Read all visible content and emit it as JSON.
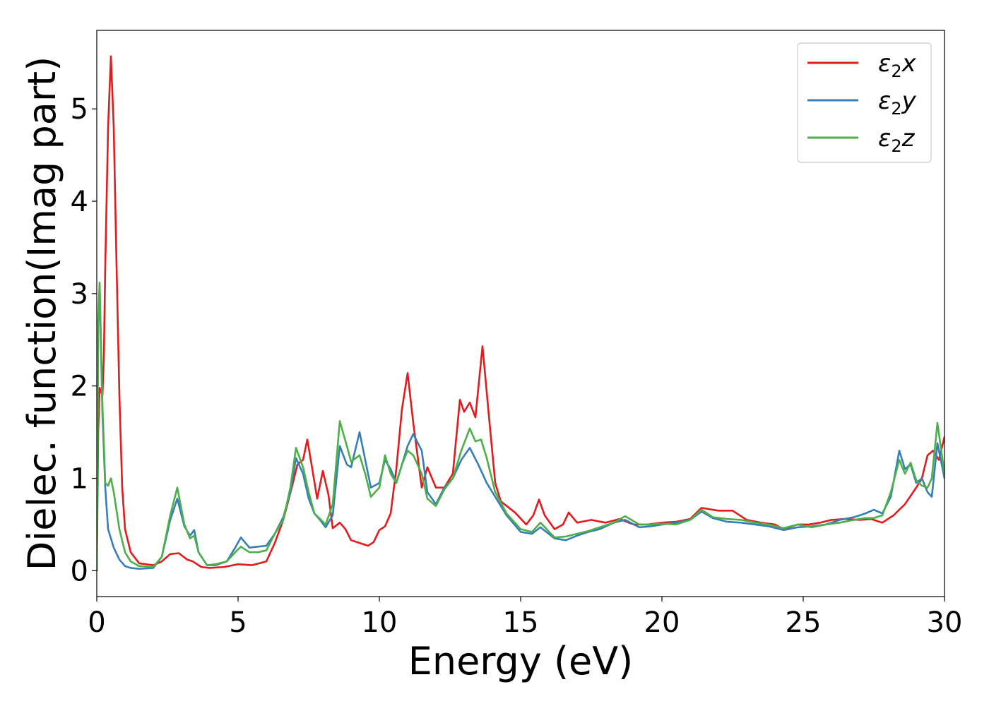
{
  "chart_data": {
    "type": "line",
    "title": "",
    "xlabel": "Energy (eV)",
    "ylabel": "Dielec. function(Imag part)",
    "xlim": [
      0,
      30
    ],
    "ylim": [
      -0.28,
      5.85
    ],
    "xticks": [
      0,
      5,
      10,
      15,
      20,
      25,
      30
    ],
    "yticks": [
      0,
      1,
      2,
      3,
      4,
      5
    ],
    "grid": false,
    "legend_position": "top-right",
    "series": [
      {
        "name": "ε2x",
        "label_base": "ε",
        "label_sub": "2",
        "label_suffix": "x",
        "color": "#e41a1c",
        "points": [
          [
            0,
            0.0
          ],
          [
            0.05,
            1.5
          ],
          [
            0.1,
            1.98
          ],
          [
            0.2,
            1.9
          ],
          [
            0.25,
            2.3
          ],
          [
            0.3,
            3.3
          ],
          [
            0.4,
            4.8
          ],
          [
            0.5,
            5.57
          ],
          [
            0.6,
            4.8
          ],
          [
            0.7,
            3.3
          ],
          [
            0.8,
            1.9
          ],
          [
            0.9,
            0.9
          ],
          [
            1.0,
            0.45
          ],
          [
            1.2,
            0.2
          ],
          [
            1.5,
            0.08
          ],
          [
            2.0,
            0.06
          ],
          [
            2.3,
            0.1
          ],
          [
            2.6,
            0.18
          ],
          [
            2.9,
            0.19
          ],
          [
            3.2,
            0.12
          ],
          [
            3.4,
            0.1
          ],
          [
            3.7,
            0.04
          ],
          [
            4.0,
            0.03
          ],
          [
            4.5,
            0.04
          ],
          [
            5.0,
            0.07
          ],
          [
            5.5,
            0.06
          ],
          [
            6.0,
            0.1
          ],
          [
            6.3,
            0.3
          ],
          [
            6.6,
            0.55
          ],
          [
            6.9,
            0.9
          ],
          [
            7.1,
            1.15
          ],
          [
            7.3,
            1.2
          ],
          [
            7.45,
            1.42
          ],
          [
            7.6,
            1.15
          ],
          [
            7.8,
            0.78
          ],
          [
            8.0,
            1.08
          ],
          [
            8.2,
            0.82
          ],
          [
            8.35,
            0.46
          ],
          [
            8.6,
            0.52
          ],
          [
            8.8,
            0.45
          ],
          [
            9.0,
            0.33
          ],
          [
            9.3,
            0.3
          ],
          [
            9.6,
            0.27
          ],
          [
            9.8,
            0.31
          ],
          [
            10.0,
            0.44
          ],
          [
            10.2,
            0.48
          ],
          [
            10.4,
            0.62
          ],
          [
            10.6,
            1.1
          ],
          [
            10.8,
            1.75
          ],
          [
            11.0,
            2.14
          ],
          [
            11.2,
            1.6
          ],
          [
            11.5,
            0.9
          ],
          [
            11.7,
            1.12
          ],
          [
            12.0,
            0.9
          ],
          [
            12.3,
            0.9
          ],
          [
            12.6,
            1.05
          ],
          [
            12.85,
            1.85
          ],
          [
            13.0,
            1.72
          ],
          [
            13.2,
            1.82
          ],
          [
            13.4,
            1.66
          ],
          [
            13.65,
            2.43
          ],
          [
            13.9,
            1.6
          ],
          [
            14.1,
            0.95
          ],
          [
            14.3,
            0.75
          ],
          [
            14.8,
            0.63
          ],
          [
            15.2,
            0.5
          ],
          [
            15.45,
            0.6
          ],
          [
            15.65,
            0.77
          ],
          [
            15.85,
            0.6
          ],
          [
            16.2,
            0.45
          ],
          [
            16.5,
            0.5
          ],
          [
            16.7,
            0.63
          ],
          [
            17.0,
            0.52
          ],
          [
            17.5,
            0.55
          ],
          [
            18.0,
            0.52
          ],
          [
            18.5,
            0.56
          ],
          [
            19.0,
            0.5
          ],
          [
            19.5,
            0.5
          ],
          [
            20.0,
            0.52
          ],
          [
            20.5,
            0.53
          ],
          [
            21.0,
            0.56
          ],
          [
            21.4,
            0.68
          ],
          [
            22.0,
            0.65
          ],
          [
            22.5,
            0.65
          ],
          [
            23.0,
            0.55
          ],
          [
            23.5,
            0.52
          ],
          [
            24.0,
            0.5
          ],
          [
            24.3,
            0.45
          ],
          [
            24.8,
            0.5
          ],
          [
            25.2,
            0.5
          ],
          [
            25.6,
            0.52
          ],
          [
            26.0,
            0.55
          ],
          [
            26.5,
            0.56
          ],
          [
            27.0,
            0.55
          ],
          [
            27.4,
            0.56
          ],
          [
            27.8,
            0.52
          ],
          [
            28.2,
            0.6
          ],
          [
            28.6,
            0.72
          ],
          [
            29.0,
            0.9
          ],
          [
            29.2,
            1.0
          ],
          [
            29.4,
            1.25
          ],
          [
            29.6,
            1.3
          ],
          [
            29.8,
            1.2
          ],
          [
            30.0,
            1.45
          ]
        ]
      },
      {
        "name": "ε2y",
        "label_base": "ε",
        "label_sub": "2",
        "label_suffix": "y",
        "color": "#377eb8",
        "points": [
          [
            0,
            0.0
          ],
          [
            0.05,
            2.6
          ],
          [
            0.1,
            3.1
          ],
          [
            0.2,
            1.7
          ],
          [
            0.3,
            0.9
          ],
          [
            0.4,
            0.45
          ],
          [
            0.6,
            0.25
          ],
          [
            0.8,
            0.12
          ],
          [
            1.0,
            0.05
          ],
          [
            1.2,
            0.03
          ],
          [
            1.5,
            0.02
          ],
          [
            2.0,
            0.03
          ],
          [
            2.3,
            0.15
          ],
          [
            2.6,
            0.55
          ],
          [
            2.85,
            0.78
          ],
          [
            3.1,
            0.48
          ],
          [
            3.3,
            0.38
          ],
          [
            3.45,
            0.44
          ],
          [
            3.6,
            0.2
          ],
          [
            3.9,
            0.06
          ],
          [
            4.2,
            0.06
          ],
          [
            4.6,
            0.1
          ],
          [
            4.9,
            0.25
          ],
          [
            5.1,
            0.36
          ],
          [
            5.4,
            0.25
          ],
          [
            5.7,
            0.26
          ],
          [
            6.0,
            0.27
          ],
          [
            6.3,
            0.4
          ],
          [
            6.6,
            0.58
          ],
          [
            6.85,
            0.85
          ],
          [
            7.05,
            1.22
          ],
          [
            7.3,
            1.05
          ],
          [
            7.5,
            0.78
          ],
          [
            7.7,
            0.62
          ],
          [
            7.9,
            0.55
          ],
          [
            8.1,
            0.47
          ],
          [
            8.35,
            0.6
          ],
          [
            8.6,
            1.35
          ],
          [
            8.85,
            1.15
          ],
          [
            9.0,
            1.12
          ],
          [
            9.3,
            1.5
          ],
          [
            9.5,
            1.2
          ],
          [
            9.7,
            0.9
          ],
          [
            10.0,
            0.95
          ],
          [
            10.2,
            1.2
          ],
          [
            10.4,
            1.1
          ],
          [
            10.6,
            0.95
          ],
          [
            10.8,
            1.15
          ],
          [
            11.0,
            1.35
          ],
          [
            11.2,
            1.48
          ],
          [
            11.5,
            1.3
          ],
          [
            11.7,
            0.85
          ],
          [
            12.0,
            0.72
          ],
          [
            12.3,
            0.9
          ],
          [
            12.6,
            1.0
          ],
          [
            12.9,
            1.2
          ],
          [
            13.2,
            1.33
          ],
          [
            13.5,
            1.15
          ],
          [
            13.8,
            0.95
          ],
          [
            14.1,
            0.8
          ],
          [
            14.5,
            0.6
          ],
          [
            15.0,
            0.42
          ],
          [
            15.4,
            0.4
          ],
          [
            15.7,
            0.47
          ],
          [
            16.2,
            0.35
          ],
          [
            16.6,
            0.33
          ],
          [
            17.0,
            0.38
          ],
          [
            17.4,
            0.42
          ],
          [
            17.8,
            0.45
          ],
          [
            18.3,
            0.52
          ],
          [
            18.7,
            0.55
          ],
          [
            19.2,
            0.47
          ],
          [
            19.6,
            0.48
          ],
          [
            20.0,
            0.5
          ],
          [
            20.5,
            0.52
          ],
          [
            21.0,
            0.55
          ],
          [
            21.4,
            0.64
          ],
          [
            21.8,
            0.57
          ],
          [
            22.3,
            0.53
          ],
          [
            22.8,
            0.52
          ],
          [
            23.3,
            0.5
          ],
          [
            23.8,
            0.48
          ],
          [
            24.3,
            0.44
          ],
          [
            24.8,
            0.47
          ],
          [
            25.3,
            0.48
          ],
          [
            25.8,
            0.5
          ],
          [
            26.3,
            0.55
          ],
          [
            26.8,
            0.58
          ],
          [
            27.2,
            0.62
          ],
          [
            27.5,
            0.66
          ],
          [
            27.8,
            0.62
          ],
          [
            28.1,
            0.8
          ],
          [
            28.4,
            1.3
          ],
          [
            28.6,
            1.1
          ],
          [
            28.8,
            1.15
          ],
          [
            29.0,
            0.95
          ],
          [
            29.2,
            1.0
          ],
          [
            29.4,
            0.85
          ],
          [
            29.55,
            0.8
          ],
          [
            29.75,
            1.38
          ],
          [
            30.0,
            1.0
          ]
        ]
      },
      {
        "name": "ε2z",
        "label_base": "ε",
        "label_sub": "2",
        "label_suffix": "z",
        "color": "#4daf4a",
        "points": [
          [
            0,
            0.0
          ],
          [
            0.05,
            2.7
          ],
          [
            0.1,
            3.12
          ],
          [
            0.2,
            1.8
          ],
          [
            0.3,
            0.95
          ],
          [
            0.4,
            0.92
          ],
          [
            0.5,
            1.0
          ],
          [
            0.6,
            0.85
          ],
          [
            0.8,
            0.45
          ],
          [
            1.0,
            0.2
          ],
          [
            1.2,
            0.1
          ],
          [
            1.5,
            0.05
          ],
          [
            2.0,
            0.04
          ],
          [
            2.3,
            0.15
          ],
          [
            2.6,
            0.6
          ],
          [
            2.85,
            0.9
          ],
          [
            3.1,
            0.5
          ],
          [
            3.3,
            0.35
          ],
          [
            3.45,
            0.38
          ],
          [
            3.6,
            0.2
          ],
          [
            3.9,
            0.06
          ],
          [
            4.2,
            0.07
          ],
          [
            4.6,
            0.1
          ],
          [
            4.9,
            0.2
          ],
          [
            5.1,
            0.26
          ],
          [
            5.4,
            0.2
          ],
          [
            5.7,
            0.2
          ],
          [
            6.0,
            0.22
          ],
          [
            6.3,
            0.4
          ],
          [
            6.6,
            0.55
          ],
          [
            6.85,
            0.9
          ],
          [
            7.05,
            1.33
          ],
          [
            7.3,
            1.12
          ],
          [
            7.5,
            0.85
          ],
          [
            7.7,
            0.62
          ],
          [
            7.9,
            0.56
          ],
          [
            8.1,
            0.5
          ],
          [
            8.35,
            0.72
          ],
          [
            8.6,
            1.62
          ],
          [
            8.85,
            1.35
          ],
          [
            9.0,
            1.18
          ],
          [
            9.3,
            1.25
          ],
          [
            9.5,
            1.05
          ],
          [
            9.7,
            0.8
          ],
          [
            10.0,
            0.9
          ],
          [
            10.2,
            1.25
          ],
          [
            10.4,
            1.05
          ],
          [
            10.6,
            0.95
          ],
          [
            10.8,
            1.15
          ],
          [
            11.0,
            1.3
          ],
          [
            11.2,
            1.25
          ],
          [
            11.5,
            1.05
          ],
          [
            11.7,
            0.78
          ],
          [
            12.0,
            0.7
          ],
          [
            12.3,
            0.88
          ],
          [
            12.6,
            1.0
          ],
          [
            12.9,
            1.3
          ],
          [
            13.2,
            1.54
          ],
          [
            13.4,
            1.4
          ],
          [
            13.6,
            1.42
          ],
          [
            13.8,
            1.22
          ],
          [
            14.1,
            0.85
          ],
          [
            14.5,
            0.62
          ],
          [
            15.0,
            0.45
          ],
          [
            15.4,
            0.42
          ],
          [
            15.7,
            0.52
          ],
          [
            16.2,
            0.36
          ],
          [
            16.6,
            0.37
          ],
          [
            17.0,
            0.4
          ],
          [
            17.4,
            0.43
          ],
          [
            17.8,
            0.47
          ],
          [
            18.3,
            0.52
          ],
          [
            18.7,
            0.59
          ],
          [
            19.2,
            0.5
          ],
          [
            19.6,
            0.5
          ],
          [
            20.0,
            0.51
          ],
          [
            20.5,
            0.5
          ],
          [
            21.0,
            0.55
          ],
          [
            21.4,
            0.66
          ],
          [
            21.8,
            0.58
          ],
          [
            22.3,
            0.56
          ],
          [
            22.8,
            0.55
          ],
          [
            23.3,
            0.52
          ],
          [
            23.8,
            0.5
          ],
          [
            24.3,
            0.46
          ],
          [
            24.8,
            0.5
          ],
          [
            25.3,
            0.47
          ],
          [
            25.8,
            0.5
          ],
          [
            26.3,
            0.52
          ],
          [
            26.8,
            0.55
          ],
          [
            27.2,
            0.57
          ],
          [
            27.5,
            0.57
          ],
          [
            27.8,
            0.6
          ],
          [
            28.1,
            0.85
          ],
          [
            28.4,
            1.2
          ],
          [
            28.6,
            1.05
          ],
          [
            28.8,
            1.17
          ],
          [
            29.0,
            0.98
          ],
          [
            29.2,
            0.92
          ],
          [
            29.4,
            0.9
          ],
          [
            29.55,
            1.0
          ],
          [
            29.75,
            1.6
          ],
          [
            30.0,
            1.05
          ]
        ]
      }
    ]
  }
}
